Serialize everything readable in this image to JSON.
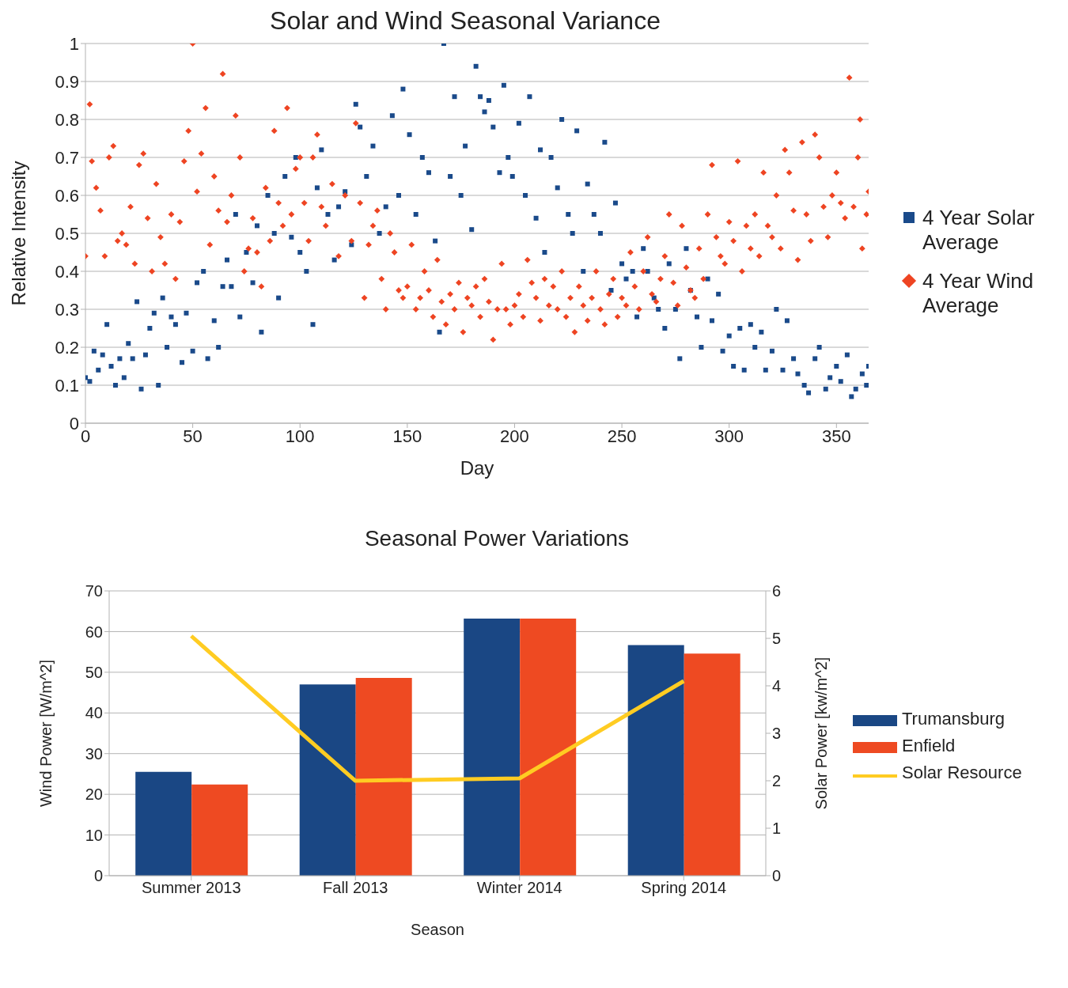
{
  "chart_data": [
    {
      "type": "scatter",
      "title": "Solar and Wind Seasonal Variance",
      "xlabel": "Day",
      "ylabel": "Relative Intensity",
      "xlim": [
        0,
        365
      ],
      "xticks": [
        0,
        50,
        100,
        150,
        200,
        250,
        300,
        350
      ],
      "ylim": [
        0,
        1
      ],
      "yticks": [
        0,
        0.1,
        0.2,
        0.3,
        0.4,
        0.5,
        0.6,
        0.7,
        0.8,
        0.9,
        1
      ],
      "grid": "y",
      "legend": "right",
      "series": [
        {
          "name": "4 Year Solar Average",
          "color": "#1a4a8a",
          "marker": "square",
          "x": [
            0,
            2,
            4,
            6,
            8,
            10,
            12,
            14,
            16,
            18,
            20,
            22,
            24,
            26,
            28,
            30,
            32,
            34,
            36,
            38,
            40,
            42,
            45,
            47,
            50,
            52,
            55,
            57,
            60,
            62,
            64,
            66,
            68,
            70,
            72,
            75,
            78,
            80,
            82,
            85,
            88,
            90,
            93,
            96,
            98,
            100,
            103,
            106,
            108,
            110,
            113,
            116,
            118,
            121,
            124,
            126,
            128,
            131,
            134,
            137,
            140,
            143,
            146,
            148,
            151,
            154,
            157,
            160,
            163,
            165,
            167,
            170,
            172,
            175,
            177,
            180,
            182,
            184,
            186,
            188,
            190,
            193,
            195,
            197,
            199,
            202,
            205,
            207,
            210,
            212,
            214,
            217,
            220,
            222,
            225,
            227,
            229,
            232,
            234,
            237,
            240,
            242,
            245,
            247,
            250,
            252,
            255,
            257,
            260,
            262,
            265,
            267,
            270,
            272,
            275,
            277,
            280,
            282,
            285,
            287,
            290,
            292,
            295,
            297,
            300,
            302,
            305,
            307,
            310,
            312,
            315,
            317,
            320,
            322,
            325,
            327,
            330,
            332,
            335,
            337,
            340,
            342,
            345,
            347,
            350,
            352,
            355,
            357,
            359,
            362,
            364,
            365
          ],
          "values": [
            0.12,
            0.11,
            0.19,
            0.14,
            0.18,
            0.26,
            0.15,
            0.1,
            0.17,
            0.12,
            0.21,
            0.17,
            0.32,
            0.09,
            0.18,
            0.25,
            0.29,
            0.1,
            0.33,
            0.2,
            0.28,
            0.26,
            0.16,
            0.29,
            0.19,
            0.37,
            0.4,
            0.17,
            0.27,
            0.2,
            0.36,
            0.43,
            0.36,
            0.55,
            0.28,
            0.45,
            0.37,
            0.52,
            0.24,
            0.6,
            0.5,
            0.33,
            0.65,
            0.49,
            0.7,
            0.45,
            0.4,
            0.26,
            0.62,
            0.72,
            0.55,
            0.43,
            0.57,
            0.61,
            0.47,
            0.84,
            0.78,
            0.65,
            0.73,
            0.5,
            0.57,
            0.81,
            0.6,
            0.88,
            0.76,
            0.55,
            0.7,
            0.66,
            0.48,
            0.24,
            1,
            0.65,
            0.86,
            0.6,
            0.73,
            0.51,
            0.94,
            0.86,
            0.82,
            0.85,
            0.78,
            0.66,
            0.89,
            0.7,
            0.65,
            0.79,
            0.6,
            0.86,
            0.54,
            0.72,
            0.45,
            0.7,
            0.62,
            0.8,
            0.55,
            0.5,
            0.77,
            0.4,
            0.63,
            0.55,
            0.5,
            0.74,
            0.35,
            0.58,
            0.42,
            0.38,
            0.4,
            0.28,
            0.46,
            0.4,
            0.33,
            0.3,
            0.25,
            0.42,
            0.3,
            0.17,
            0.46,
            0.35,
            0.28,
            0.2,
            0.38,
            0.27,
            0.34,
            0.19,
            0.23,
            0.15,
            0.25,
            0.14,
            0.26,
            0.2,
            0.24,
            0.14,
            0.19,
            0.3,
            0.14,
            0.27,
            0.17,
            0.13,
            0.1,
            0.08,
            0.17,
            0.2,
            0.09,
            0.12,
            0.15,
            0.11,
            0.18,
            0.07,
            0.09,
            0.13,
            0.1,
            0.15
          ]
        },
        {
          "name": "4 Year Wind Average",
          "color": "#ee4422",
          "marker": "diamond",
          "x": [
            0,
            2,
            3,
            5,
            7,
            9,
            11,
            13,
            15,
            17,
            19,
            21,
            23,
            25,
            27,
            29,
            31,
            33,
            35,
            37,
            40,
            42,
            44,
            46,
            48,
            50,
            52,
            54,
            56,
            58,
            60,
            62,
            64,
            66,
            68,
            70,
            72,
            74,
            76,
            78,
            80,
            82,
            84,
            86,
            88,
            90,
            92,
            94,
            96,
            98,
            100,
            102,
            104,
            106,
            108,
            110,
            112,
            115,
            118,
            121,
            124,
            126,
            128,
            130,
            132,
            134,
            136,
            138,
            140,
            142,
            144,
            146,
            148,
            150,
            152,
            154,
            156,
            158,
            160,
            162,
            164,
            166,
            168,
            170,
            172,
            174,
            176,
            178,
            180,
            182,
            184,
            186,
            188,
            190,
            192,
            194,
            196,
            198,
            200,
            202,
            204,
            206,
            208,
            210,
            212,
            214,
            216,
            218,
            220,
            222,
            224,
            226,
            228,
            230,
            232,
            234,
            236,
            238,
            240,
            242,
            244,
            246,
            248,
            250,
            252,
            254,
            256,
            258,
            260,
            262,
            264,
            266,
            268,
            270,
            272,
            274,
            276,
            278,
            280,
            282,
            284,
            286,
            288,
            290,
            292,
            294,
            296,
            298,
            300,
            302,
            304,
            306,
            308,
            310,
            312,
            314,
            316,
            318,
            320,
            322,
            324,
            326,
            328,
            330,
            332,
            334,
            336,
            338,
            340,
            342,
            344,
            346,
            348,
            350,
            352,
            354,
            356,
            358,
            360,
            361,
            362,
            364,
            365
          ],
          "values": [
            0.44,
            0.84,
            0.69,
            0.62,
            0.56,
            0.44,
            0.7,
            0.73,
            0.48,
            0.5,
            0.47,
            0.57,
            0.42,
            0.68,
            0.71,
            0.54,
            0.4,
            0.63,
            0.49,
            0.42,
            0.55,
            0.38,
            0.53,
            0.69,
            0.77,
            1,
            0.61,
            0.71,
            0.83,
            0.47,
            0.65,
            0.56,
            0.92,
            0.53,
            0.6,
            0.81,
            0.7,
            0.4,
            0.46,
            0.54,
            0.45,
            0.36,
            0.62,
            0.48,
            0.77,
            0.58,
            0.52,
            0.83,
            0.55,
            0.67,
            0.7,
            0.58,
            0.48,
            0.7,
            0.76,
            0.57,
            0.52,
            0.63,
            0.44,
            0.6,
            0.48,
            0.79,
            0.58,
            0.33,
            0.47,
            0.52,
            0.56,
            0.38,
            0.3,
            0.5,
            0.45,
            0.35,
            0.33,
            0.36,
            0.47,
            0.3,
            0.33,
            0.4,
            0.35,
            0.28,
            0.43,
            0.32,
            0.26,
            0.34,
            0.3,
            0.37,
            0.24,
            0.33,
            0.31,
            0.36,
            0.28,
            0.38,
            0.32,
            0.22,
            0.3,
            0.42,
            0.3,
            0.26,
            0.31,
            0.34,
            0.28,
            0.43,
            0.37,
            0.33,
            0.27,
            0.38,
            0.31,
            0.36,
            0.3,
            0.4,
            0.28,
            0.33,
            0.24,
            0.36,
            0.31,
            0.27,
            0.33,
            0.4,
            0.3,
            0.26,
            0.34,
            0.38,
            0.28,
            0.33,
            0.31,
            0.45,
            0.36,
            0.3,
            0.4,
            0.49,
            0.34,
            0.32,
            0.38,
            0.44,
            0.55,
            0.37,
            0.31,
            0.52,
            0.41,
            0.35,
            0.33,
            0.46,
            0.38,
            0.55,
            0.68,
            0.49,
            0.44,
            0.42,
            0.53,
            0.48,
            0.69,
            0.4,
            0.52,
            0.46,
            0.55,
            0.44,
            0.66,
            0.52,
            0.49,
            0.6,
            0.46,
            0.72,
            0.66,
            0.56,
            0.43,
            0.74,
            0.55,
            0.48,
            0.76,
            0.7,
            0.57,
            0.49,
            0.6,
            0.66,
            0.58,
            0.54,
            0.91,
            0.57,
            0.7,
            0.8,
            0.46,
            0.55,
            0.61
          ]
        }
      ]
    },
    {
      "type": "bar",
      "title": "Seasonal Power Variations",
      "xlabel": "Season",
      "ylabel": "Wind Power [W/m^2]",
      "y2label": "Solar Power [kw/m^2]",
      "categories": [
        "Summer 2013",
        "Fall 2013",
        "Winter 2014",
        "Spring 2014"
      ],
      "ylim": [
        0,
        70
      ],
      "yticks": [
        0,
        10,
        20,
        30,
        40,
        50,
        60,
        70
      ],
      "y2lim": [
        0,
        6
      ],
      "y2ticks": [
        0,
        1,
        2,
        3,
        4,
        5,
        6
      ],
      "grid": "y",
      "legend": "right",
      "series": [
        {
          "name": "Trumansburg",
          "color": "#1a4784",
          "values": [
            25.5,
            47,
            63.2,
            56.7
          ]
        },
        {
          "name": "Enfield",
          "color": "#ee4a22",
          "values": [
            22.4,
            48.6,
            63.2,
            54.6
          ]
        },
        {
          "name": "Solar Resource",
          "type": "line",
          "axis": "y2",
          "color": "#ffcc22",
          "values": [
            5.05,
            2,
            2.05,
            4.1
          ]
        }
      ]
    }
  ]
}
